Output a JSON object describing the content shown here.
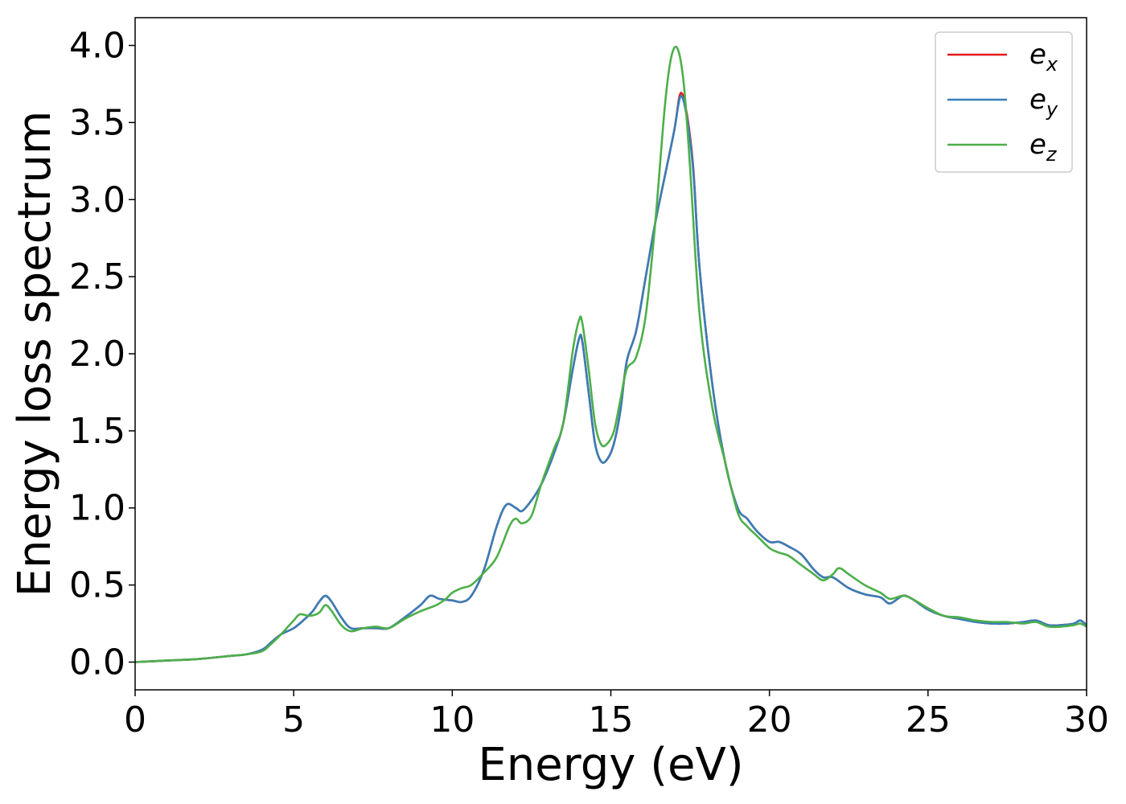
{
  "chart_data": {
    "type": "line",
    "title": "",
    "xlabel": "Energy (eV)",
    "ylabel": "Energy loss spectrum",
    "xlim": [
      0,
      30
    ],
    "ylim": [
      -0.18,
      4.18
    ],
    "xticks": [
      0,
      5,
      10,
      15,
      20,
      25,
      30
    ],
    "yticks": [
      0.0,
      0.5,
      1.0,
      1.5,
      2.0,
      2.5,
      3.0,
      3.5,
      4.0
    ],
    "xtick_labels": [
      "0",
      "5",
      "10",
      "15",
      "20",
      "25",
      "30"
    ],
    "ytick_labels": [
      "0.0",
      "0.5",
      "1.0",
      "1.5",
      "2.0",
      "2.5",
      "3.0",
      "3.5",
      "4.0"
    ],
    "grid": false,
    "legend_position": "top-right",
    "series": [
      {
        "name": "e_x",
        "legend_base": "e",
        "legend_sub": "x",
        "color": "#e41a1c",
        "x": [
          0,
          1,
          2,
          3,
          3.5,
          4,
          4.3,
          4.6,
          5,
          5.3,
          5.6,
          5.8,
          6.0,
          6.2,
          6.5,
          6.8,
          7.2,
          7.6,
          8.0,
          8.5,
          9.0,
          9.3,
          9.6,
          10.0,
          10.3,
          10.6,
          11.0,
          11.4,
          11.7,
          12.0,
          12.2,
          12.5,
          12.8,
          13.2,
          13.5,
          13.8,
          14.0,
          14.1,
          14.3,
          14.5,
          14.7,
          14.9,
          15.1,
          15.3,
          15.5,
          15.8,
          16.1,
          16.4,
          16.7,
          17.0,
          17.2,
          17.4,
          17.6,
          17.8,
          18.2,
          18.6,
          19.0,
          19.3,
          19.6,
          20.0,
          20.3,
          20.6,
          21.0,
          21.4,
          21.7,
          22.0,
          22.5,
          23.0,
          23.5,
          23.8,
          24.2,
          24.5,
          25.0,
          25.5,
          26.0,
          26.5,
          27.0,
          27.5,
          28.0,
          28.4,
          28.8,
          29.2,
          29.6,
          29.8,
          30.0
        ],
        "values": [
          0.0,
          0.01,
          0.02,
          0.04,
          0.05,
          0.08,
          0.13,
          0.18,
          0.22,
          0.27,
          0.33,
          0.39,
          0.43,
          0.39,
          0.29,
          0.22,
          0.22,
          0.22,
          0.22,
          0.29,
          0.37,
          0.43,
          0.41,
          0.4,
          0.39,
          0.43,
          0.6,
          0.88,
          1.02,
          1.0,
          0.98,
          1.05,
          1.15,
          1.35,
          1.55,
          1.9,
          2.1,
          2.08,
          1.75,
          1.42,
          1.3,
          1.32,
          1.42,
          1.63,
          1.95,
          2.15,
          2.5,
          2.85,
          3.15,
          3.45,
          3.69,
          3.55,
          3.2,
          2.55,
          1.8,
          1.3,
          1.0,
          0.93,
          0.85,
          0.78,
          0.78,
          0.75,
          0.7,
          0.6,
          0.55,
          0.55,
          0.48,
          0.44,
          0.42,
          0.38,
          0.43,
          0.41,
          0.34,
          0.3,
          0.28,
          0.26,
          0.25,
          0.25,
          0.26,
          0.27,
          0.24,
          0.24,
          0.25,
          0.27,
          0.24
        ]
      },
      {
        "name": "e_y",
        "legend_base": "e",
        "legend_sub": "y",
        "color": "#377eb8",
        "x": [
          0,
          1,
          2,
          3,
          3.5,
          4,
          4.3,
          4.6,
          5,
          5.3,
          5.6,
          5.8,
          6.0,
          6.2,
          6.5,
          6.8,
          7.2,
          7.6,
          8.0,
          8.5,
          9.0,
          9.3,
          9.6,
          10.0,
          10.3,
          10.6,
          11.0,
          11.4,
          11.7,
          12.0,
          12.2,
          12.5,
          12.8,
          13.2,
          13.5,
          13.8,
          14.0,
          14.1,
          14.3,
          14.5,
          14.7,
          14.9,
          15.1,
          15.3,
          15.5,
          15.8,
          16.1,
          16.4,
          16.7,
          17.0,
          17.2,
          17.4,
          17.6,
          17.8,
          18.2,
          18.6,
          19.0,
          19.3,
          19.6,
          20.0,
          20.3,
          20.6,
          21.0,
          21.4,
          21.7,
          22.0,
          22.5,
          23.0,
          23.5,
          23.8,
          24.2,
          24.5,
          25.0,
          25.5,
          26.0,
          26.5,
          27.0,
          27.5,
          28.0,
          28.4,
          28.8,
          29.2,
          29.6,
          29.8,
          30.0
        ],
        "values": [
          0.0,
          0.01,
          0.02,
          0.04,
          0.05,
          0.08,
          0.13,
          0.18,
          0.22,
          0.27,
          0.33,
          0.39,
          0.43,
          0.39,
          0.29,
          0.22,
          0.22,
          0.22,
          0.22,
          0.29,
          0.37,
          0.43,
          0.41,
          0.4,
          0.39,
          0.43,
          0.6,
          0.88,
          1.02,
          1.0,
          0.98,
          1.05,
          1.15,
          1.35,
          1.55,
          1.9,
          2.1,
          2.08,
          1.75,
          1.42,
          1.3,
          1.32,
          1.42,
          1.63,
          1.95,
          2.15,
          2.5,
          2.85,
          3.15,
          3.45,
          3.67,
          3.53,
          3.18,
          2.55,
          1.8,
          1.3,
          1.0,
          0.93,
          0.85,
          0.78,
          0.78,
          0.75,
          0.7,
          0.6,
          0.55,
          0.55,
          0.48,
          0.44,
          0.42,
          0.38,
          0.43,
          0.41,
          0.34,
          0.3,
          0.28,
          0.26,
          0.25,
          0.25,
          0.26,
          0.27,
          0.24,
          0.24,
          0.25,
          0.27,
          0.24
        ]
      },
      {
        "name": "e_z",
        "legend_base": "e",
        "legend_sub": "z",
        "color": "#4daf4a",
        "x": [
          0,
          1,
          2,
          3,
          3.5,
          4,
          4.3,
          4.6,
          5,
          5.2,
          5.5,
          5.8,
          6.0,
          6.2,
          6.5,
          6.8,
          7.2,
          7.6,
          8.0,
          8.5,
          9.0,
          9.5,
          9.8,
          10.0,
          10.3,
          10.6,
          11.0,
          11.4,
          11.8,
          12.0,
          12.2,
          12.5,
          12.8,
          13.2,
          13.5,
          13.8,
          14.0,
          14.1,
          14.3,
          14.5,
          14.7,
          14.9,
          15.1,
          15.3,
          15.5,
          15.8,
          16.1,
          16.4,
          16.7,
          16.9,
          17.1,
          17.3,
          17.5,
          17.8,
          18.2,
          18.6,
          19.0,
          19.3,
          19.6,
          20.0,
          20.3,
          20.6,
          21.0,
          21.4,
          21.7,
          22.0,
          22.2,
          22.5,
          23.0,
          23.5,
          23.8,
          24.2,
          24.5,
          25.0,
          25.5,
          26.0,
          26.5,
          27.0,
          27.5,
          28.0,
          28.4,
          28.8,
          29.2,
          29.6,
          29.8,
          30.0
        ],
        "values": [
          0.0,
          0.01,
          0.02,
          0.04,
          0.05,
          0.07,
          0.12,
          0.18,
          0.27,
          0.31,
          0.3,
          0.32,
          0.37,
          0.33,
          0.24,
          0.2,
          0.22,
          0.23,
          0.22,
          0.28,
          0.33,
          0.37,
          0.41,
          0.45,
          0.48,
          0.5,
          0.58,
          0.68,
          0.88,
          0.93,
          0.9,
          0.95,
          1.15,
          1.38,
          1.55,
          2.02,
          2.22,
          2.2,
          1.9,
          1.55,
          1.41,
          1.42,
          1.5,
          1.7,
          1.9,
          1.98,
          2.25,
          2.85,
          3.6,
          3.92,
          3.98,
          3.75,
          3.2,
          2.25,
          1.65,
          1.3,
          0.97,
          0.88,
          0.82,
          0.74,
          0.71,
          0.69,
          0.63,
          0.57,
          0.53,
          0.57,
          0.61,
          0.57,
          0.5,
          0.45,
          0.41,
          0.43,
          0.41,
          0.35,
          0.3,
          0.29,
          0.27,
          0.26,
          0.26,
          0.25,
          0.26,
          0.23,
          0.23,
          0.24,
          0.25,
          0.23
        ]
      }
    ]
  }
}
